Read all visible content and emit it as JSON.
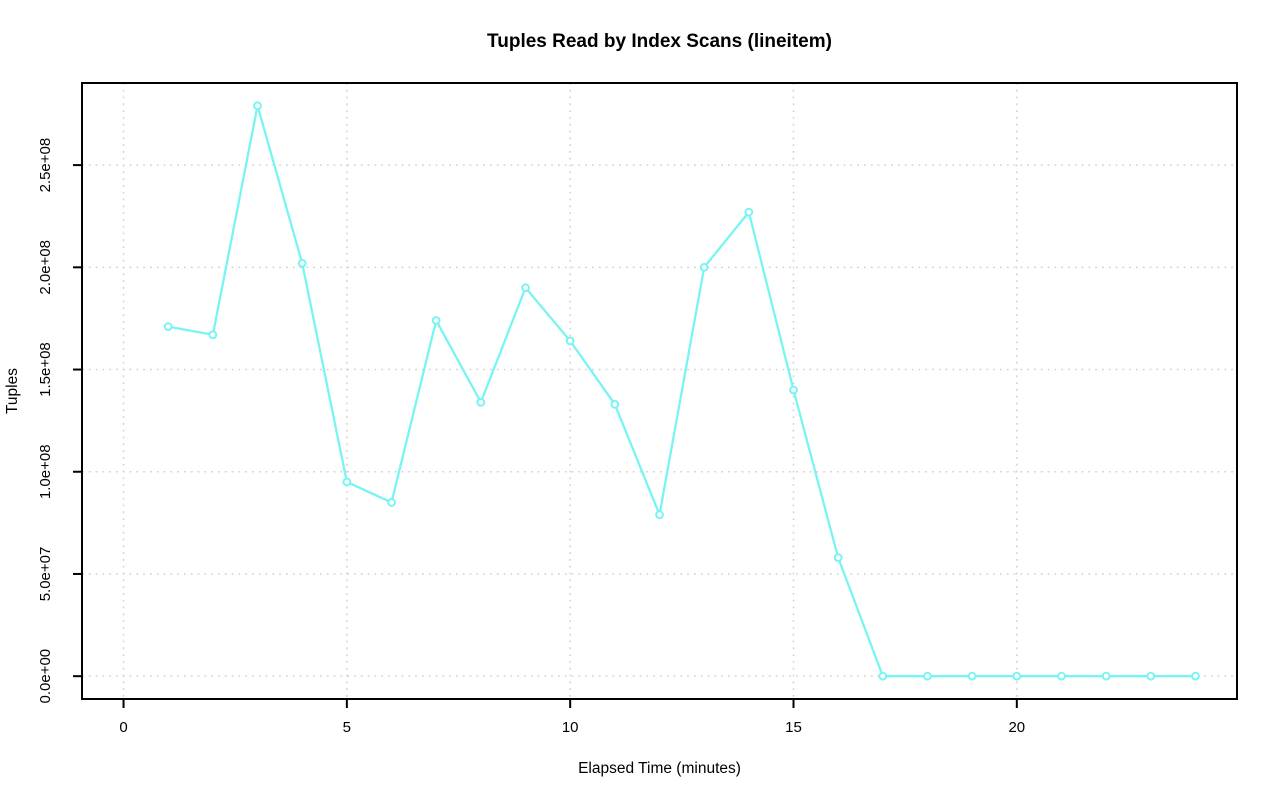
{
  "chart": {
    "title": "Tuples Read by Index Scans (lineitem)",
    "xlabel": "Elapsed Time (minutes)",
    "ylabel": "Tuples"
  },
  "chart_data": {
    "type": "line",
    "title": "Tuples Read by Index Scans (lineitem)",
    "xlabel": "Elapsed Time (minutes)",
    "ylabel": "Tuples",
    "x": [
      1,
      2,
      3,
      4,
      5,
      6,
      7,
      8,
      9,
      10,
      11,
      12,
      13,
      14,
      15,
      16,
      17,
      18,
      19,
      20,
      21,
      22,
      23,
      24
    ],
    "values": [
      171000000,
      167000000,
      279000000,
      202000000,
      95000000,
      85000000,
      174000000,
      134000000,
      190000000,
      164000000,
      133000000,
      79000000,
      200000000,
      227000000,
      140000000,
      58000000,
      0,
      0,
      0,
      0,
      0,
      0,
      0,
      0
    ],
    "series_name": "tuples-read-index-scans-lineitem",
    "x_ticks": [
      {
        "value": 0,
        "label": "0"
      },
      {
        "value": 5,
        "label": "5"
      },
      {
        "value": 10,
        "label": "10"
      },
      {
        "value": 15,
        "label": "15"
      },
      {
        "value": 20,
        "label": "20"
      }
    ],
    "y_ticks": [
      {
        "value": 0,
        "label": "0.0e+00"
      },
      {
        "value": 50000000,
        "label": "5.0e+07"
      },
      {
        "value": 100000000,
        "label": "1.0e+08"
      },
      {
        "value": 150000000,
        "label": "1.5e+08"
      },
      {
        "value": 200000000,
        "label": "2.0e+08"
      },
      {
        "value": 250000000,
        "label": "2.5e+08"
      }
    ],
    "xlim": [
      -0.93,
      24.93
    ],
    "ylim": [
      -11160000,
      290160000
    ],
    "grid": true,
    "legend": "none",
    "colors": {
      "line": "#7af4f2",
      "marker_fill": "#ffffff",
      "grid": "#d2d2d2",
      "axis": "#000000",
      "text": "#000000",
      "background": "#ffffff"
    }
  }
}
